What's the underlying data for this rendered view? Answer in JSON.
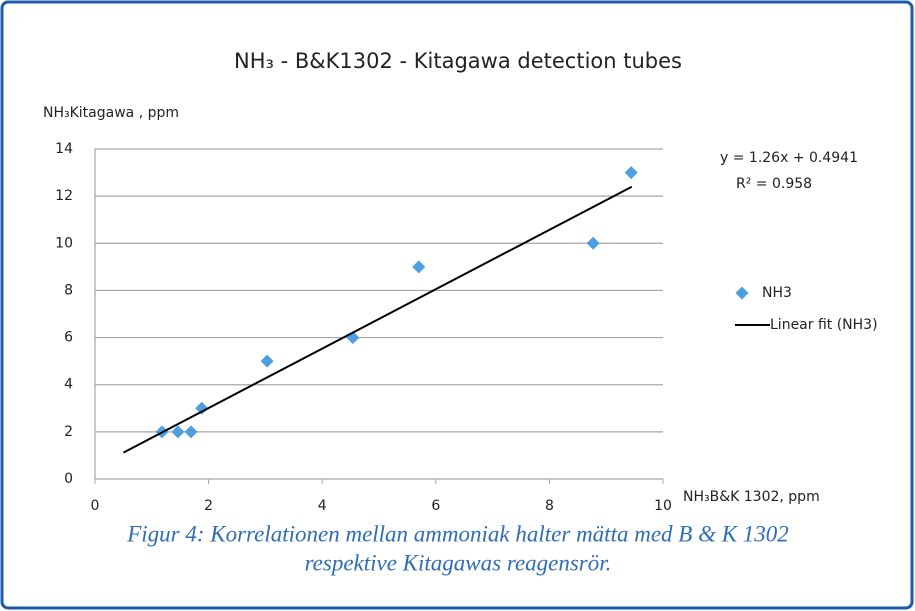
{
  "chart_data": {
    "type": "scatter",
    "title": "NH₃ - B&K1302 - Kitagawa detection tubes",
    "y_label": "NH₃Kitagawa , ppm",
    "x_label": "NH₃B&K 1302, ppm",
    "series": [
      {
        "name": "NH3",
        "color": "#4f9fe0",
        "x": [
          1.18,
          1.46,
          1.69,
          1.88,
          3.03,
          4.54,
          5.7,
          8.77,
          9.44
        ],
        "values": [
          2,
          2,
          2,
          3,
          5,
          6,
          9,
          10,
          13
        ]
      }
    ],
    "trendline": {
      "name": "Linear fit (NH3)",
      "color": "#000000",
      "x": [
        0.5,
        9.45
      ],
      "values": [
        1.12,
        12.4
      ]
    },
    "annotations": [
      "y = 1.26x + 0.4941",
      "R² = 0.958"
    ],
    "xlim": [
      0,
      10
    ],
    "xticks": [
      0,
      2,
      4,
      6,
      8,
      10
    ],
    "ylim": [
      0,
      14
    ],
    "yticks": [
      0,
      2,
      4,
      6,
      8,
      10,
      12,
      14
    ],
    "grid": true,
    "legend": "right"
  },
  "caption": [
    "Figur 4: Korrelationen mellan ammoniak halter mätta med B & K 1302",
    "respektive Kitagawas reagensrör."
  ]
}
